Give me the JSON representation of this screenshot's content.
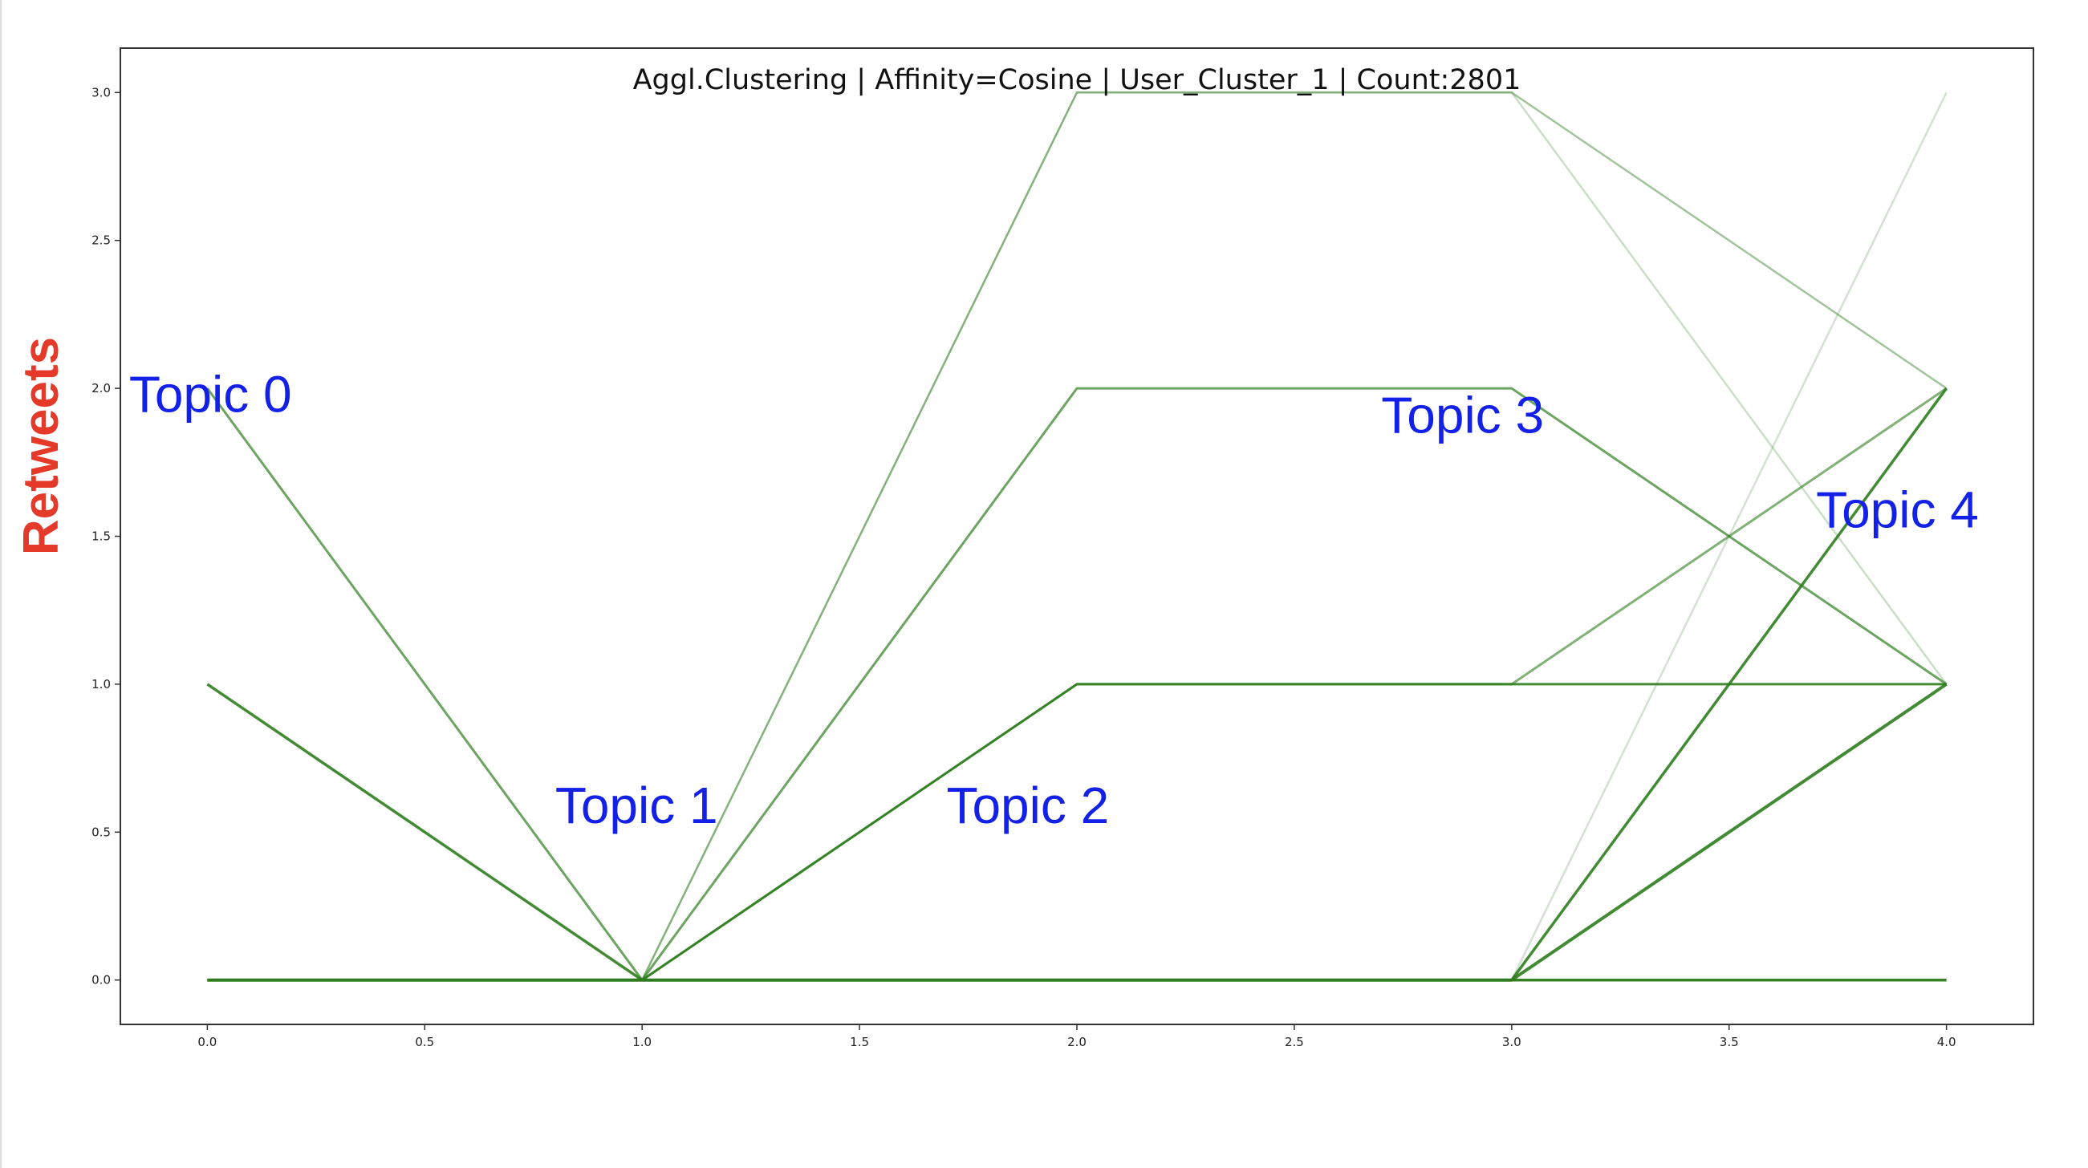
{
  "chart_data": {
    "type": "line",
    "title": "Aggl.Clustering | Affinity=Cosine | User_Cluster_1 | Count:2801",
    "xlabel": "",
    "ylabel": "Retweets",
    "xlim": [
      -0.2,
      4.2
    ],
    "ylim": [
      -0.15,
      3.15
    ],
    "grid": false,
    "legend": "none",
    "x_ticks": [
      "0.0",
      "0.5",
      "1.0",
      "1.5",
      "2.0",
      "2.5",
      "3.0",
      "3.5",
      "4.0"
    ],
    "y_ticks": [
      "0.0",
      "0.5",
      "1.0",
      "1.5",
      "2.0",
      "2.5",
      "3.0"
    ],
    "line_color": "#2e7d1e",
    "x": [
      0,
      1,
      2,
      3,
      4
    ],
    "series": [
      {
        "values": [
          0,
          0,
          0,
          0,
          1
        ],
        "opacity": 0.9,
        "width": 4
      },
      {
        "values": [
          0,
          0,
          0,
          0,
          2
        ],
        "opacity": 0.9,
        "width": 3.5
      },
      {
        "values": [
          0,
          0,
          0,
          0,
          3
        ],
        "opacity": 0.22,
        "width": 2.5
      },
      {
        "values": [
          1,
          0,
          0,
          0,
          0
        ],
        "opacity": 0.9,
        "width": 3.5
      },
      {
        "values": [
          2,
          0,
          0,
          0,
          0
        ],
        "opacity": 0.7,
        "width": 3
      },
      {
        "values": [
          0,
          0,
          1,
          1,
          1
        ],
        "opacity": 0.9,
        "width": 3
      },
      {
        "values": [
          0,
          0,
          1,
          1,
          2
        ],
        "opacity": 0.6,
        "width": 3
      },
      {
        "values": [
          0,
          0,
          2,
          2,
          1
        ],
        "opacity": 0.7,
        "width": 3
      },
      {
        "values": [
          0,
          0,
          3,
          3,
          2
        ],
        "opacity": 0.45,
        "width": 2.5
      },
      {
        "values": [
          0,
          0,
          3,
          3,
          1
        ],
        "opacity": 0.25,
        "width": 2.5
      }
    ],
    "annotations": [
      {
        "text": "Topic 0",
        "x": -0.18,
        "y": 1.92
      },
      {
        "text": "Topic 1",
        "x": 0.8,
        "y": 0.53
      },
      {
        "text": "Topic 2",
        "x": 1.7,
        "y": 0.53
      },
      {
        "text": "Topic 3",
        "x": 2.7,
        "y": 1.85
      },
      {
        "text": "Topic 4",
        "x": 3.7,
        "y": 1.53
      }
    ]
  }
}
